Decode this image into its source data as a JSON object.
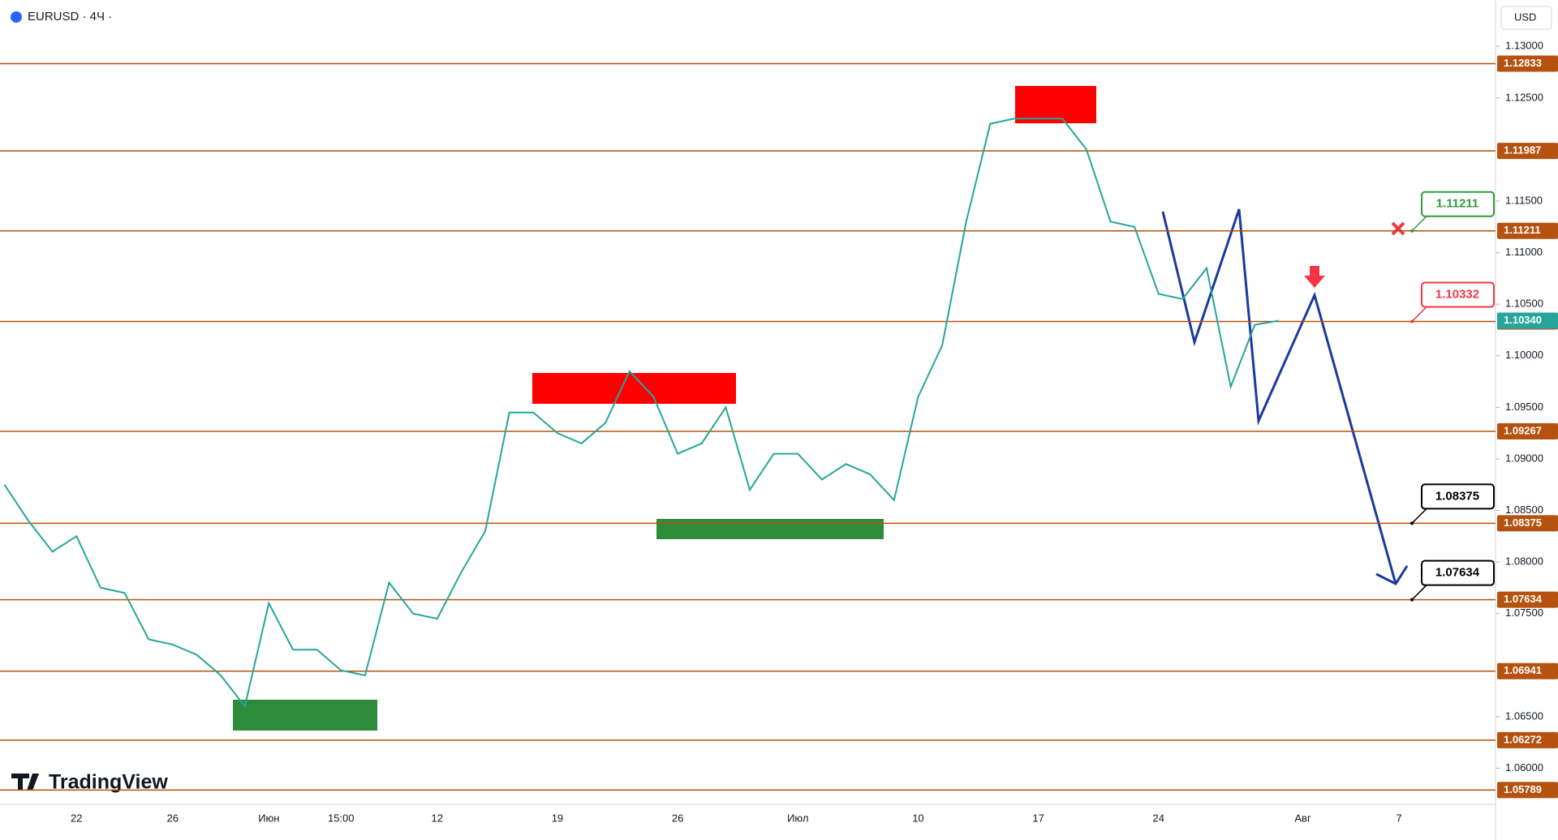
{
  "chart_data": {
    "type": "line",
    "title": "EURUSD · 4Ч ·",
    "currency": "USD",
    "brand": "TradingView",
    "categories": [
      null,
      null,
      null,
      "22",
      null,
      null,
      null,
      "26",
      null,
      null,
      null,
      "Июн",
      null,
      null,
      "15:00",
      null,
      null,
      null,
      "12",
      null,
      null,
      null,
      null,
      "19",
      null,
      null,
      null,
      null,
      "26",
      null,
      null,
      null,
      null,
      "Июл",
      null,
      null,
      null,
      null,
      "10",
      null,
      null,
      null,
      null,
      "17",
      null,
      null,
      null,
      null,
      "24",
      null,
      null,
      null,
      null,
      null,
      "Авг",
      null,
      null,
      null,
      "7"
    ],
    "series": [
      {
        "name": "EURUSD",
        "color": "#26a69a",
        "values": [
          1.0875,
          1.084,
          1.081,
          1.0825,
          1.0775,
          1.077,
          1.0725,
          1.072,
          1.071,
          1.069,
          1.066,
          1.076,
          1.0715,
          1.0715,
          1.0695,
          1.069,
          1.078,
          1.075,
          1.0745,
          1.079,
          1.083,
          1.0945,
          1.0945,
          1.0925,
          1.0915,
          1.0935,
          1.0985,
          1.096,
          1.0905,
          1.0915,
          1.095,
          1.087,
          1.0905,
          1.0905,
          1.088,
          1.0895,
          1.0885,
          1.086,
          1.096,
          1.101,
          1.113,
          1.1225,
          1.123,
          1.123,
          1.123,
          1.12,
          1.113,
          1.1125,
          1.106,
          1.1055,
          1.1085,
          1.097,
          1.103,
          1.1034,
          null,
          null,
          null,
          null,
          null
        ]
      }
    ],
    "ylim": [
      1.0565,
      1.1345
    ],
    "yticks": [
      {
        "value": 1.13,
        "label": "1.13000"
      },
      {
        "value": 1.125,
        "label": "1.12500"
      },
      {
        "value": 1.115,
        "label": "1.11500"
      },
      {
        "value": 1.11,
        "label": "1.11000"
      },
      {
        "value": 1.105,
        "label": "1.10500"
      },
      {
        "value": 1.1,
        "label": "1.10000"
      },
      {
        "value": 1.095,
        "label": "1.09500"
      },
      {
        "value": 1.09,
        "label": "1.09000"
      },
      {
        "value": 1.085,
        "label": "1.08500"
      },
      {
        "value": 1.08,
        "label": "1.08000"
      },
      {
        "value": 1.075,
        "label": "1.07500"
      },
      {
        "value": 1.065,
        "label": "1.06500"
      },
      {
        "value": 1.06,
        "label": "1.06000"
      }
    ],
    "levels": [
      1.12833,
      1.11987,
      1.11211,
      1.10332,
      1.09267,
      1.08375,
      1.07634,
      1.06941,
      1.06272,
      1.05789
    ],
    "level_color": "#b5520f",
    "last_price": {
      "value": 1.1034,
      "label": "1.10340"
    },
    "callouts": [
      {
        "value": 1.11211,
        "color": "#2e9c3a"
      },
      {
        "value": 1.10332,
        "color": "#f23645"
      },
      {
        "value": 1.08375,
        "color": "#000000"
      },
      {
        "value": 1.07634,
        "color": "#000000"
      }
    ]
  }
}
